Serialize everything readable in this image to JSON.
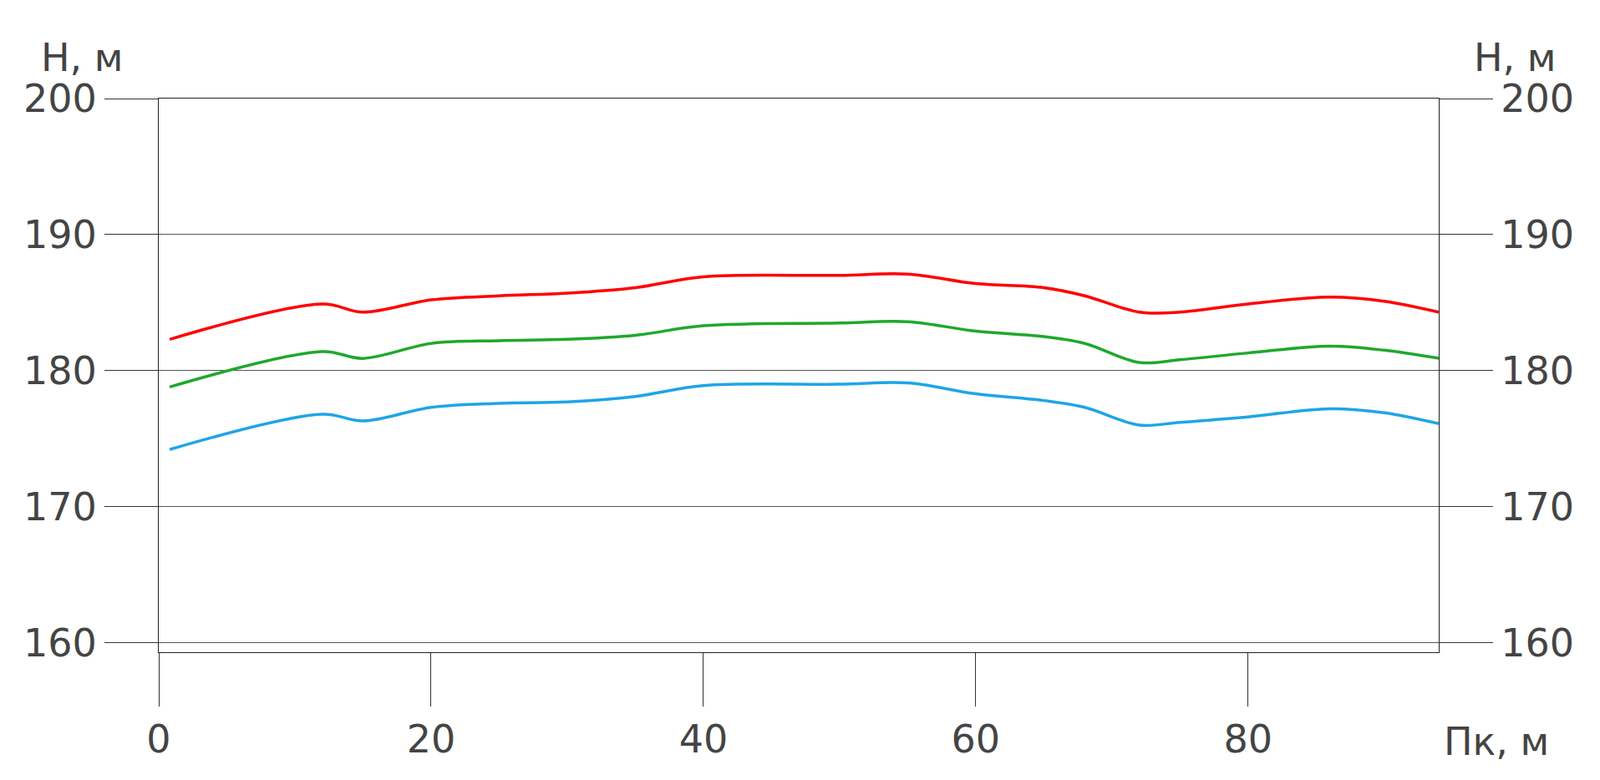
{
  "chart_data": {
    "type": "line",
    "x_label": "Пк, м",
    "y_label": "H, м",
    "xlim": [
      0,
      94
    ],
    "ylim": [
      159.3,
      200
    ],
    "xticks": [
      0,
      20,
      40,
      60,
      80
    ],
    "yticks": [
      160,
      170,
      180,
      190,
      200
    ],
    "grid": true,
    "x": [
      0.8,
      12,
      15,
      20,
      25,
      30,
      35,
      40,
      50,
      55,
      60,
      65,
      68,
      72,
      75,
      80,
      86,
      90,
      94
    ],
    "series": [
      {
        "color": "#ff0000",
        "values": [
          182.3,
          184.9,
          184.3,
          185.2,
          185.5,
          185.7,
          186.1,
          186.9,
          187.0,
          187.1,
          186.4,
          186.1,
          185.5,
          184.3,
          184.3,
          184.9,
          185.4,
          185.1,
          184.3
        ]
      },
      {
        "color": "#1fa82c",
        "values": [
          178.8,
          181.4,
          180.9,
          182.0,
          182.2,
          182.3,
          182.6,
          183.3,
          183.5,
          183.6,
          182.9,
          182.5,
          182.0,
          180.6,
          180.8,
          181.3,
          181.8,
          181.5,
          180.9
        ]
      },
      {
        "color": "#1ea5e6",
        "values": [
          174.2,
          176.8,
          176.3,
          177.3,
          177.6,
          177.7,
          178.1,
          178.9,
          179.0,
          179.1,
          178.3,
          177.8,
          177.3,
          176.0,
          176.2,
          176.6,
          177.2,
          176.9,
          176.1
        ]
      }
    ]
  }
}
